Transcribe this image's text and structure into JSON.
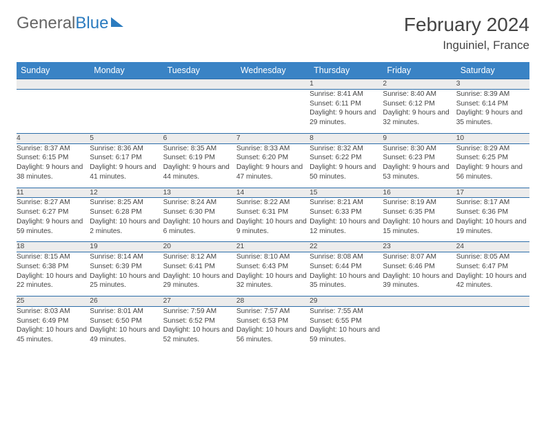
{
  "brand": {
    "part1": "General",
    "part2": "Blue"
  },
  "title": "February 2024",
  "location": "Inguiniel, France",
  "colors": {
    "header_bg": "#3a83c5",
    "border": "#2b6ca8",
    "daynum_bg": "#ececec",
    "text": "#444444"
  },
  "weekdays": [
    "Sunday",
    "Monday",
    "Tuesday",
    "Wednesday",
    "Thursday",
    "Friday",
    "Saturday"
  ],
  "weeks": [
    [
      null,
      null,
      null,
      null,
      {
        "n": "1",
        "sr": "8:41 AM",
        "ss": "6:11 PM",
        "dl": "9 hours and 29 minutes."
      },
      {
        "n": "2",
        "sr": "8:40 AM",
        "ss": "6:12 PM",
        "dl": "9 hours and 32 minutes."
      },
      {
        "n": "3",
        "sr": "8:39 AM",
        "ss": "6:14 PM",
        "dl": "9 hours and 35 minutes."
      }
    ],
    [
      {
        "n": "4",
        "sr": "8:37 AM",
        "ss": "6:15 PM",
        "dl": "9 hours and 38 minutes."
      },
      {
        "n": "5",
        "sr": "8:36 AM",
        "ss": "6:17 PM",
        "dl": "9 hours and 41 minutes."
      },
      {
        "n": "6",
        "sr": "8:35 AM",
        "ss": "6:19 PM",
        "dl": "9 hours and 44 minutes."
      },
      {
        "n": "7",
        "sr": "8:33 AM",
        "ss": "6:20 PM",
        "dl": "9 hours and 47 minutes."
      },
      {
        "n": "8",
        "sr": "8:32 AM",
        "ss": "6:22 PM",
        "dl": "9 hours and 50 minutes."
      },
      {
        "n": "9",
        "sr": "8:30 AM",
        "ss": "6:23 PM",
        "dl": "9 hours and 53 minutes."
      },
      {
        "n": "10",
        "sr": "8:29 AM",
        "ss": "6:25 PM",
        "dl": "9 hours and 56 minutes."
      }
    ],
    [
      {
        "n": "11",
        "sr": "8:27 AM",
        "ss": "6:27 PM",
        "dl": "9 hours and 59 minutes."
      },
      {
        "n": "12",
        "sr": "8:25 AM",
        "ss": "6:28 PM",
        "dl": "10 hours and 2 minutes."
      },
      {
        "n": "13",
        "sr": "8:24 AM",
        "ss": "6:30 PM",
        "dl": "10 hours and 6 minutes."
      },
      {
        "n": "14",
        "sr": "8:22 AM",
        "ss": "6:31 PM",
        "dl": "10 hours and 9 minutes."
      },
      {
        "n": "15",
        "sr": "8:21 AM",
        "ss": "6:33 PM",
        "dl": "10 hours and 12 minutes."
      },
      {
        "n": "16",
        "sr": "8:19 AM",
        "ss": "6:35 PM",
        "dl": "10 hours and 15 minutes."
      },
      {
        "n": "17",
        "sr": "8:17 AM",
        "ss": "6:36 PM",
        "dl": "10 hours and 19 minutes."
      }
    ],
    [
      {
        "n": "18",
        "sr": "8:15 AM",
        "ss": "6:38 PM",
        "dl": "10 hours and 22 minutes."
      },
      {
        "n": "19",
        "sr": "8:14 AM",
        "ss": "6:39 PM",
        "dl": "10 hours and 25 minutes."
      },
      {
        "n": "20",
        "sr": "8:12 AM",
        "ss": "6:41 PM",
        "dl": "10 hours and 29 minutes."
      },
      {
        "n": "21",
        "sr": "8:10 AM",
        "ss": "6:43 PM",
        "dl": "10 hours and 32 minutes."
      },
      {
        "n": "22",
        "sr": "8:08 AM",
        "ss": "6:44 PM",
        "dl": "10 hours and 35 minutes."
      },
      {
        "n": "23",
        "sr": "8:07 AM",
        "ss": "6:46 PM",
        "dl": "10 hours and 39 minutes."
      },
      {
        "n": "24",
        "sr": "8:05 AM",
        "ss": "6:47 PM",
        "dl": "10 hours and 42 minutes."
      }
    ],
    [
      {
        "n": "25",
        "sr": "8:03 AM",
        "ss": "6:49 PM",
        "dl": "10 hours and 45 minutes."
      },
      {
        "n": "26",
        "sr": "8:01 AM",
        "ss": "6:50 PM",
        "dl": "10 hours and 49 minutes."
      },
      {
        "n": "27",
        "sr": "7:59 AM",
        "ss": "6:52 PM",
        "dl": "10 hours and 52 minutes."
      },
      {
        "n": "28",
        "sr": "7:57 AM",
        "ss": "6:53 PM",
        "dl": "10 hours and 56 minutes."
      },
      {
        "n": "29",
        "sr": "7:55 AM",
        "ss": "6:55 PM",
        "dl": "10 hours and 59 minutes."
      },
      null,
      null
    ]
  ],
  "labels": {
    "sunrise": "Sunrise: ",
    "sunset": "Sunset: ",
    "daylight": "Daylight: "
  }
}
